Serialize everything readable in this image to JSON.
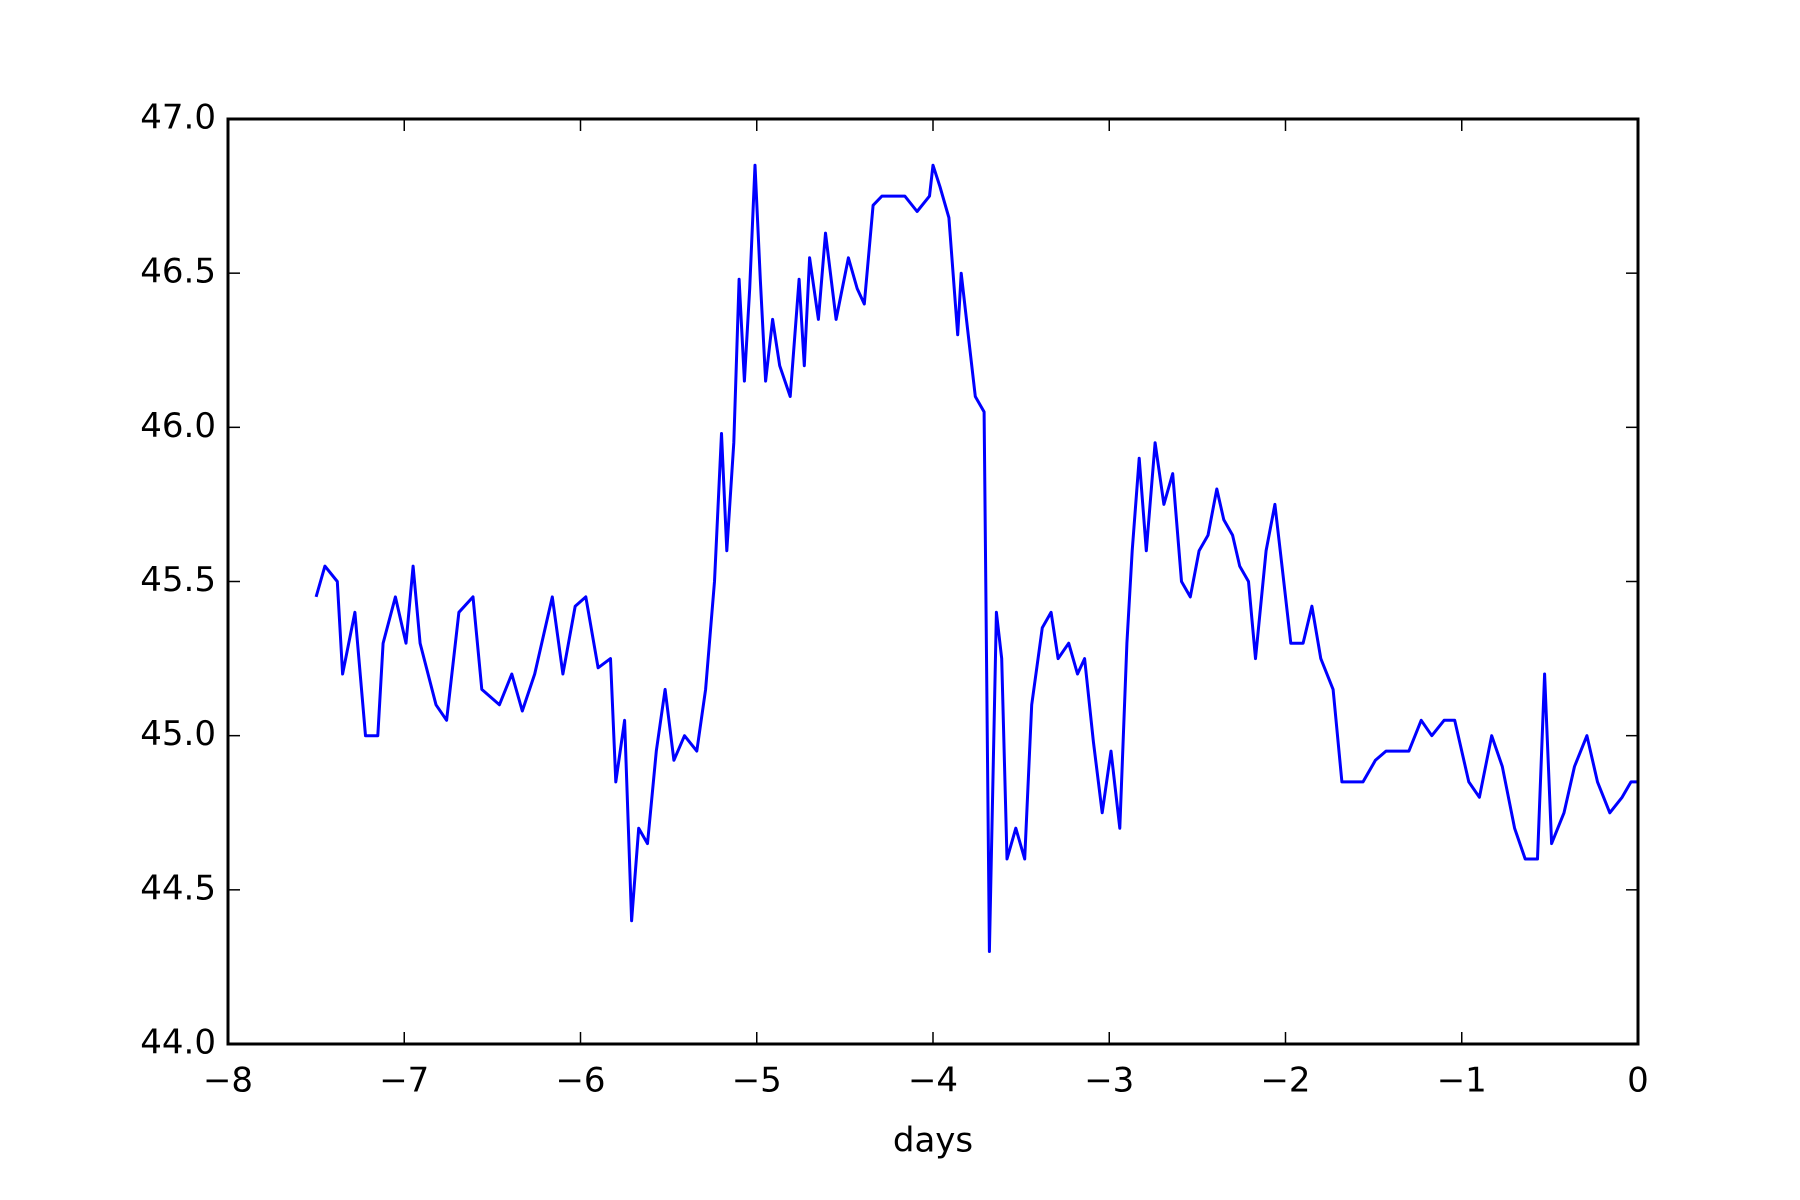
{
  "chart_data": {
    "type": "line",
    "xlabel": "days",
    "x": [
      -7.5,
      -7.45,
      -7.38,
      -7.35,
      -7.28,
      -7.22,
      -7.15,
      -7.12,
      -7.05,
      -6.99,
      -6.95,
      -6.91,
      -6.82,
      -6.76,
      -6.69,
      -6.61,
      -6.56,
      -6.46,
      -6.39,
      -6.33,
      -6.26,
      -6.16,
      -6.1,
      -6.03,
      -5.97,
      -5.9,
      -5.83,
      -5.8,
      -5.75,
      -5.71,
      -5.67,
      -5.62,
      -5.57,
      -5.52,
      -5.47,
      -5.41,
      -5.34,
      -5.29,
      -5.24,
      -5.2,
      -5.17,
      -5.13,
      -5.1,
      -5.07,
      -5.04,
      -5.01,
      -4.98,
      -4.95,
      -4.91,
      -4.87,
      -4.81,
      -4.76,
      -4.73,
      -4.7,
      -4.65,
      -4.61,
      -4.55,
      -4.48,
      -4.43,
      -4.39,
      -4.34,
      -4.29,
      -4.22,
      -4.16,
      -4.09,
      -4.02,
      -4.0,
      -3.96,
      -3.91,
      -3.86,
      -3.84,
      -3.79,
      -3.76,
      -3.71,
      -3.68,
      -3.64,
      -3.61,
      -3.58,
      -3.53,
      -3.48,
      -3.44,
      -3.38,
      -3.33,
      -3.29,
      -3.23,
      -3.18,
      -3.14,
      -3.09,
      -3.04,
      -2.99,
      -2.94,
      -2.9,
      -2.87,
      -2.83,
      -2.79,
      -2.74,
      -2.69,
      -2.64,
      -2.59,
      -2.54,
      -2.49,
      -2.44,
      -2.39,
      -2.35,
      -2.3,
      -2.26,
      -2.21,
      -2.17,
      -2.11,
      -2.06,
      -2.02,
      -1.97,
      -1.9,
      -1.85,
      -1.8,
      -1.73,
      -1.68,
      -1.62,
      -1.56,
      -1.49,
      -1.43,
      -1.36,
      -1.3,
      -1.23,
      -1.17,
      -1.1,
      -1.04,
      -0.96,
      -0.9,
      -0.83,
      -0.77,
      -0.7,
      -0.64,
      -0.57,
      -0.53,
      -0.49,
      -0.42,
      -0.36,
      -0.29,
      -0.23,
      -0.16,
      -0.09,
      -0.04,
      0.0
    ],
    "series": [
      {
        "color": "#0000ff",
        "values": [
          45.45,
          45.55,
          45.5,
          45.2,
          45.4,
          45.0,
          45.0,
          45.3,
          45.45,
          45.3,
          45.55,
          45.3,
          45.1,
          45.05,
          45.4,
          45.45,
          45.15,
          45.1,
          45.2,
          45.08,
          45.2,
          45.45,
          45.2,
          45.42,
          45.45,
          45.22,
          45.25,
          44.85,
          45.05,
          44.4,
          44.7,
          44.65,
          44.95,
          45.15,
          44.92,
          45.0,
          44.95,
          45.15,
          45.5,
          45.98,
          45.6,
          45.95,
          46.48,
          46.15,
          46.45,
          46.85,
          46.48,
          46.15,
          46.35,
          46.2,
          46.1,
          46.48,
          46.2,
          46.55,
          46.35,
          46.63,
          46.35,
          46.55,
          46.45,
          46.4,
          46.72,
          46.75,
          46.75,
          46.75,
          46.7,
          46.75,
          46.85,
          46.78,
          46.68,
          46.3,
          46.5,
          46.25,
          46.1,
          46.05,
          44.3,
          45.4,
          45.25,
          44.6,
          44.7,
          44.6,
          45.1,
          45.35,
          45.4,
          45.25,
          45.3,
          45.2,
          45.25,
          44.98,
          44.75,
          44.95,
          44.7,
          45.3,
          45.6,
          45.9,
          45.6,
          45.95,
          45.75,
          45.85,
          45.5,
          45.45,
          45.6,
          45.65,
          45.8,
          45.7,
          45.65,
          45.55,
          45.5,
          45.25,
          45.6,
          45.75,
          45.55,
          45.3,
          45.3,
          45.42,
          45.25,
          45.15,
          44.85,
          44.85,
          44.85,
          44.92,
          44.95,
          44.95,
          44.95,
          45.05,
          45.0,
          45.05,
          45.05,
          44.85,
          44.8,
          45.0,
          44.9,
          44.7,
          44.6,
          44.6,
          45.2,
          44.65,
          44.75,
          44.9,
          45.0,
          44.85,
          44.75,
          44.8,
          44.85,
          44.85
        ]
      }
    ],
    "xlim": [
      -8,
      0
    ],
    "xticks": [
      {
        "value": -8,
        "label": "−8"
      },
      {
        "value": -7,
        "label": "−7"
      },
      {
        "value": -6,
        "label": "−6"
      },
      {
        "value": -5,
        "label": "−5"
      },
      {
        "value": -4,
        "label": "−4"
      },
      {
        "value": -3,
        "label": "−3"
      },
      {
        "value": -2,
        "label": "−2"
      },
      {
        "value": -1,
        "label": "−1"
      },
      0
    ],
    "ylim": [
      44,
      47
    ],
    "yticks": [
      {
        "value": 44,
        "label": "44.0"
      },
      44.5,
      {
        "value": 45,
        "label": "45.0"
      },
      45.5,
      {
        "value": 46,
        "label": "46.0"
      },
      46.5,
      {
        "value": 47,
        "label": "47.0"
      }
    ]
  }
}
